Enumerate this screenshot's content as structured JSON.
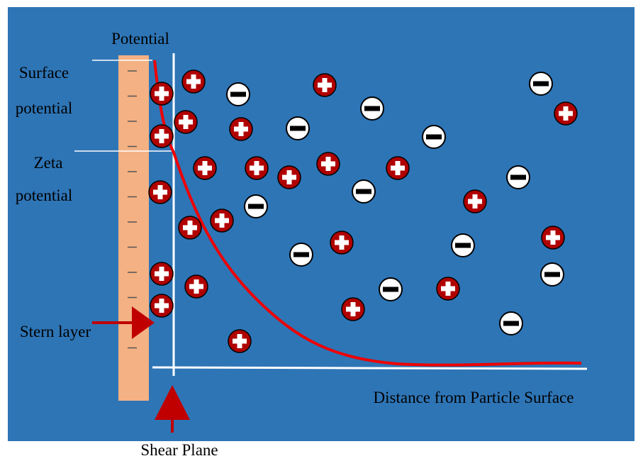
{
  "labels": {
    "potential": "Potential",
    "surface_potential": [
      "Surface",
      "potential"
    ],
    "zeta_potential": [
      "Zeta",
      "potential"
    ],
    "stern_layer": "Stern layer",
    "distance": "Distance from Particle Surface",
    "shear_plane": "Shear Plane"
  }
}
